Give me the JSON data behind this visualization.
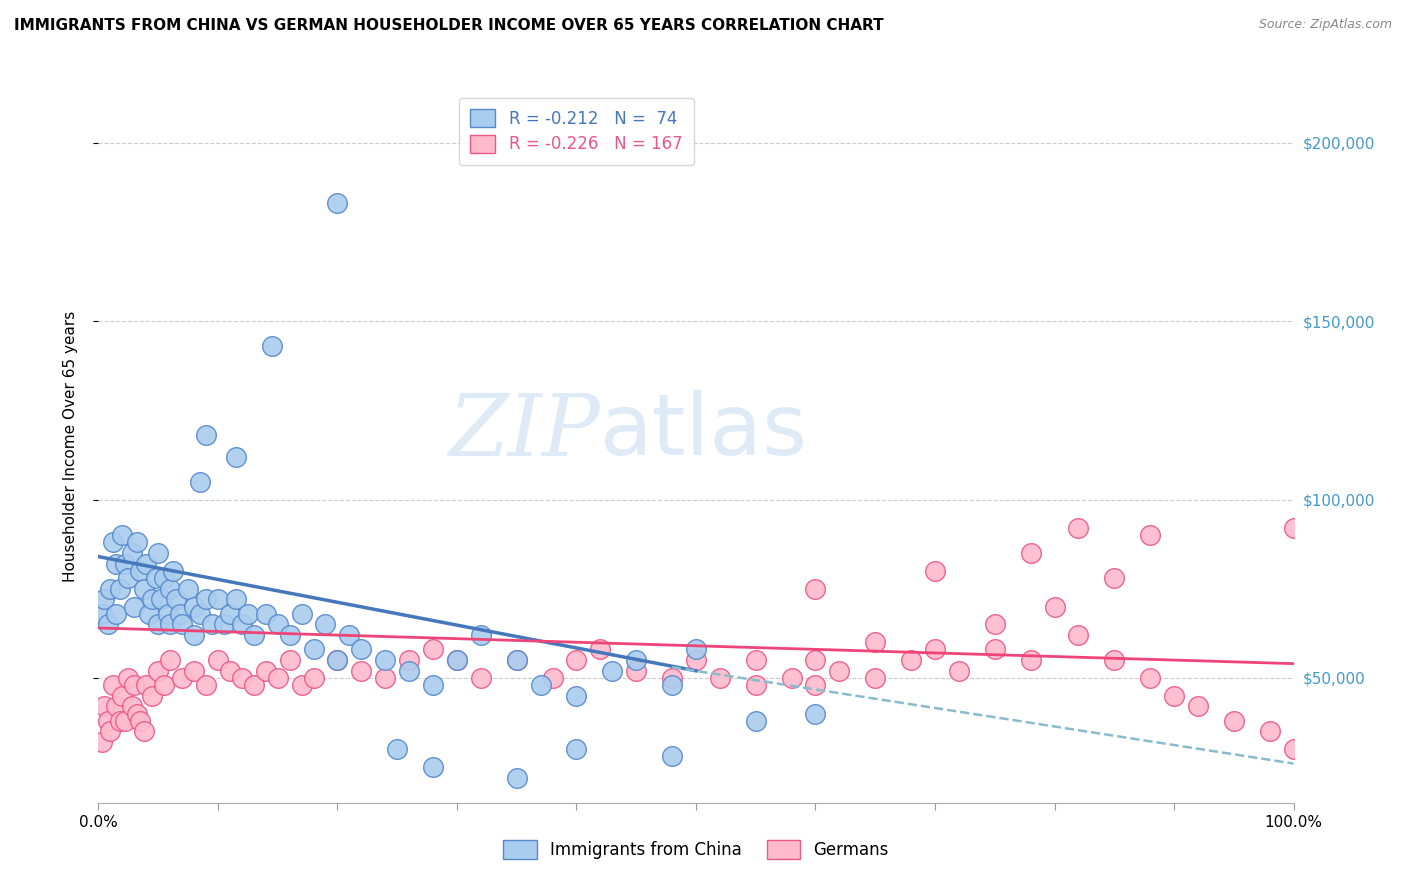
{
  "title": "IMMIGRANTS FROM CHINA VS GERMAN HOUSEHOLDER INCOME OVER 65 YEARS CORRELATION CHART",
  "source": "Source: ZipAtlas.com",
  "ylabel": "Householder Income Over 65 years",
  "watermark_zip": "ZIP",
  "watermark_atlas": "atlas",
  "legend_china": "R = -0.212   N =  74",
  "legend_german": "R = -0.226   N = 167",
  "legend_labels": [
    "Immigrants from China",
    "Germans"
  ],
  "ytick_values": [
    50000,
    100000,
    150000,
    200000
  ],
  "ytick_labels": [
    "$50,000",
    "$100,000",
    "$150,000",
    "$200,000"
  ],
  "ylim": [
    15000,
    215000
  ],
  "xlim": [
    0,
    100
  ],
  "china_color": "#aaccee",
  "china_edge_color": "#5588cc",
  "german_color": "#ffbbcc",
  "german_edge_color": "#ee5588",
  "china_line_color": "#4477bb",
  "german_line_color": "#ee4477",
  "dashed_line_color": "#88bbcc",
  "right_tick_color": "#4499cc",
  "china_scatter_x": [
    0.3,
    0.5,
    0.8,
    1.0,
    1.2,
    1.5,
    1.5,
    1.8,
    2.0,
    2.2,
    2.5,
    2.8,
    3.0,
    3.2,
    3.5,
    3.8,
    4.0,
    4.2,
    4.5,
    4.8,
    5.0,
    5.0,
    5.2,
    5.5,
    5.8,
    6.0,
    6.0,
    6.2,
    6.5,
    6.8,
    7.0,
    7.5,
    8.0,
    8.0,
    8.5,
    9.0,
    9.5,
    10.0,
    10.5,
    11.0,
    11.5,
    12.0,
    12.5,
    13.0,
    14.0,
    15.0,
    16.0,
    17.0,
    18.0,
    19.0,
    20.0,
    21.0,
    22.0,
    24.0,
    26.0,
    28.0,
    30.0,
    32.0,
    35.0,
    37.0,
    40.0,
    43.0,
    45.0,
    48.0,
    50.0,
    55.0,
    60.0
  ],
  "china_scatter_y": [
    68000,
    72000,
    65000,
    75000,
    88000,
    82000,
    68000,
    75000,
    90000,
    82000,
    78000,
    85000,
    70000,
    88000,
    80000,
    75000,
    82000,
    68000,
    72000,
    78000,
    85000,
    65000,
    72000,
    78000,
    68000,
    75000,
    65000,
    80000,
    72000,
    68000,
    65000,
    75000,
    70000,
    62000,
    68000,
    72000,
    65000,
    72000,
    65000,
    68000,
    72000,
    65000,
    68000,
    62000,
    68000,
    65000,
    62000,
    68000,
    58000,
    65000,
    55000,
    62000,
    58000,
    55000,
    52000,
    48000,
    55000,
    62000,
    55000,
    48000,
    45000,
    52000,
    55000,
    48000,
    58000,
    38000,
    40000
  ],
  "china_outliers_x": [
    20.0,
    9.0,
    11.5,
    14.5,
    8.5,
    25.0,
    28.0,
    35.0,
    40.0,
    48.0
  ],
  "china_outliers_y": [
    183000,
    118000,
    112000,
    143000,
    105000,
    30000,
    25000,
    22000,
    30000,
    28000
  ],
  "german_scatter_x": [
    0.3,
    0.5,
    0.8,
    1.0,
    1.2,
    1.5,
    1.8,
    2.0,
    2.2,
    2.5,
    2.8,
    3.0,
    3.2,
    3.5,
    3.8,
    4.0,
    4.5,
    5.0,
    5.5,
    6.0,
    7.0,
    8.0,
    9.0,
    10.0,
    11.0,
    12.0,
    13.0,
    14.0,
    15.0,
    16.0,
    17.0,
    18.0,
    20.0,
    22.0,
    24.0,
    26.0,
    28.0,
    30.0,
    32.0,
    35.0,
    38.0,
    40.0,
    42.0,
    45.0,
    48.0,
    50.0,
    52.0,
    55.0,
    55.0,
    58.0,
    60.0,
    60.0,
    62.0,
    65.0,
    65.0,
    68.0,
    70.0,
    72.0,
    75.0,
    75.0,
    78.0,
    80.0,
    82.0,
    85.0,
    85.0,
    88.0,
    90.0,
    92.0,
    95.0,
    98.0,
    100.0
  ],
  "german_scatter_y": [
    32000,
    42000,
    38000,
    35000,
    48000,
    42000,
    38000,
    45000,
    38000,
    50000,
    42000,
    48000,
    40000,
    38000,
    35000,
    48000,
    45000,
    52000,
    48000,
    55000,
    50000,
    52000,
    48000,
    55000,
    52000,
    50000,
    48000,
    52000,
    50000,
    55000,
    48000,
    50000,
    55000,
    52000,
    50000,
    55000,
    58000,
    55000,
    50000,
    55000,
    50000,
    55000,
    58000,
    52000,
    50000,
    55000,
    50000,
    55000,
    48000,
    50000,
    55000,
    48000,
    52000,
    60000,
    50000,
    55000,
    58000,
    52000,
    65000,
    58000,
    55000,
    70000,
    62000,
    78000,
    55000,
    50000,
    45000,
    42000,
    38000,
    35000,
    30000
  ],
  "german_outliers_x": [
    82.0,
    88.0,
    100.0,
    60.0,
    70.0,
    78.0
  ],
  "german_outliers_y": [
    92000,
    90000,
    92000,
    75000,
    80000,
    85000
  ],
  "china_trend_x": [
    0,
    50
  ],
  "china_trend_y": [
    84000,
    52000
  ],
  "german_trend_x": [
    0,
    100
  ],
  "german_trend_y": [
    64000,
    54000
  ],
  "dashed_trend_x": [
    48,
    100
  ],
  "dashed_trend_y": [
    53000,
    26000
  ],
  "xtick_positions": [
    0,
    10,
    20,
    30,
    40,
    50,
    60,
    70,
    80,
    90,
    100
  ],
  "title_fontsize": 11,
  "axis_label_fontsize": 11,
  "tick_fontsize": 11
}
